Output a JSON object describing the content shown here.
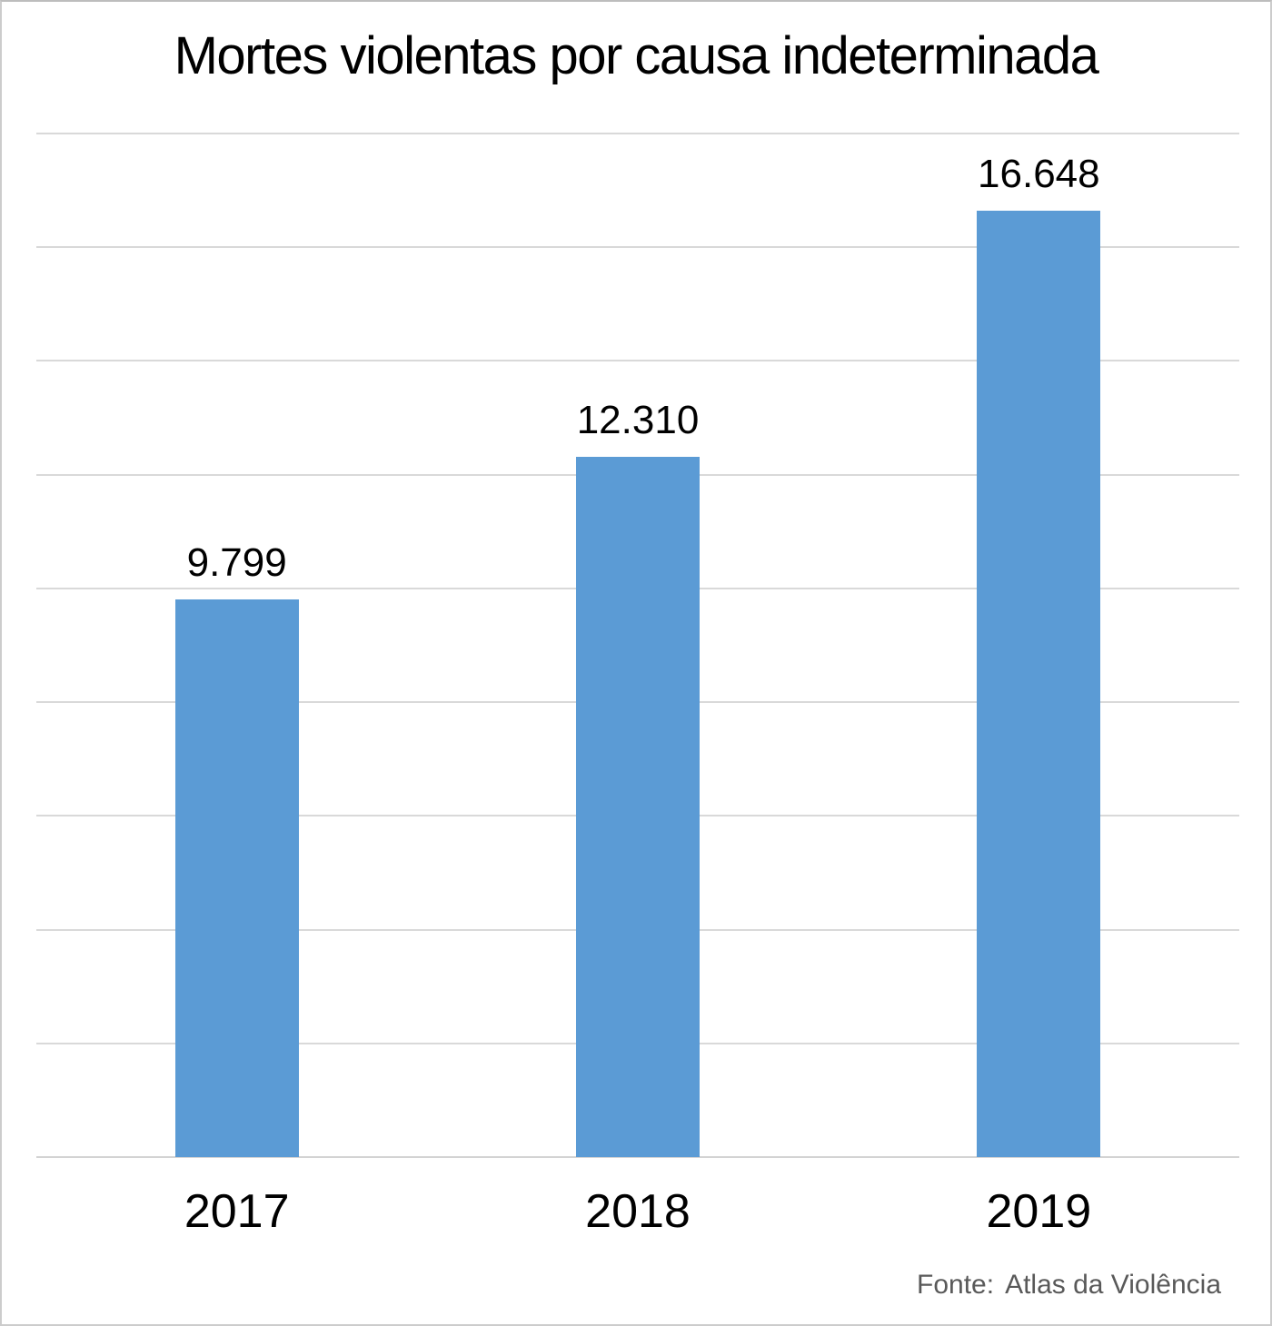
{
  "chart_data": {
    "type": "bar",
    "title": "Mortes violentas por causa indeterminada",
    "categories": [
      "2017",
      "2018",
      "2019"
    ],
    "values": [
      9799,
      12310,
      16648
    ],
    "value_labels": [
      "9.799",
      "12.310",
      "16.648"
    ],
    "xlabel": "",
    "ylabel": "",
    "ylim": [
      0,
      18000
    ],
    "gridline_step": 2000,
    "grid": true,
    "legend_position": "none",
    "bar_color": "#5b9bd5",
    "gridline_color": "#d9d9d9",
    "axis_line_color": "#d3d3d3",
    "text_color": "#000000",
    "source_color": "#595959"
  },
  "source": {
    "prefix": "Fonte:",
    "text": "Atlas da Violência"
  }
}
